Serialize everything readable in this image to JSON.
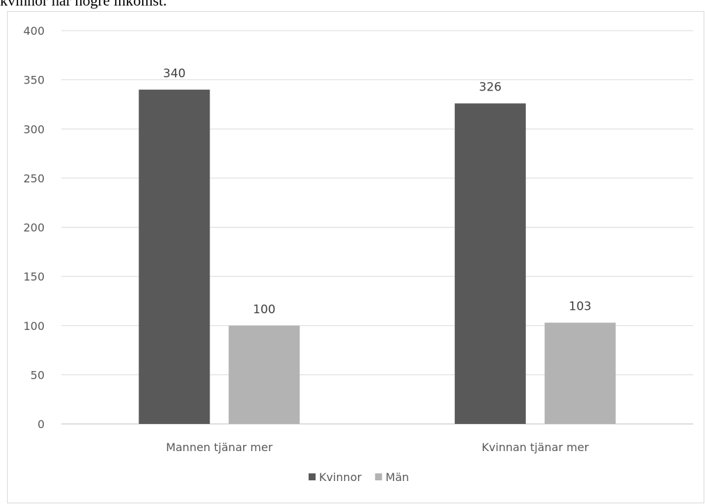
{
  "caption": "kvinnor har högre inkomst.",
  "chart_data": {
    "type": "bar",
    "categories": [
      "Mannen tjänar mer",
      "Kvinnan tjänar mer"
    ],
    "series": [
      {
        "name": "Kvinnor",
        "values": [
          340,
          326
        ],
        "color": "#595959"
      },
      {
        "name": "Män",
        "values": [
          100,
          103
        ],
        "color": "#b3b3b3"
      }
    ],
    "ylim": [
      0,
      400
    ],
    "yticks": [
      0,
      50,
      100,
      150,
      200,
      250,
      300,
      350,
      400
    ],
    "grid": true,
    "data_labels": true,
    "legend_position": "bottom"
  }
}
